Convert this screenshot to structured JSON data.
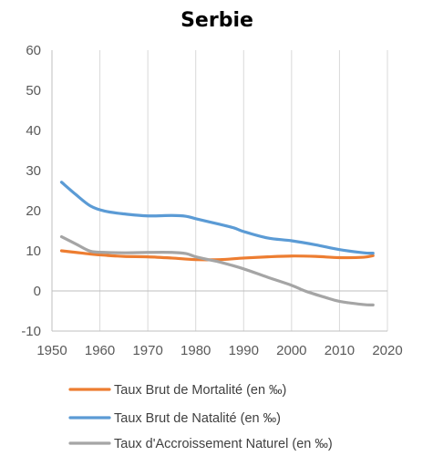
{
  "chart_data": {
    "type": "line",
    "title": "Serbie",
    "xlabel": "",
    "ylabel": "",
    "xlim": [
      1950,
      2020
    ],
    "ylim": [
      -10,
      60
    ],
    "x_ticks": [
      1950,
      1960,
      1970,
      1980,
      1990,
      2000,
      2010,
      2020
    ],
    "y_ticks": [
      60,
      50,
      40,
      30,
      20,
      10,
      0,
      -10
    ],
    "grid": "vertical",
    "legend_position": "bottom",
    "series": [
      {
        "name": "Taux Brut de Mortalité (en ‰)",
        "color": "#ed7d31",
        "x": [
          1952,
          1955,
          1958,
          1961,
          1965,
          1970,
          1975,
          1980,
          1985,
          1990,
          1995,
          2000,
          2005,
          2010,
          2015,
          2017
        ],
        "y": [
          10.0,
          9.6,
          9.2,
          8.9,
          8.6,
          8.5,
          8.2,
          7.8,
          7.8,
          8.2,
          8.5,
          8.7,
          8.6,
          8.3,
          8.4,
          8.8
        ]
      },
      {
        "name": "Taux Brut de Natalité (en ‰)",
        "color": "#5b9bd5",
        "x": [
          1952,
          1955,
          1958,
          1961,
          1965,
          1970,
          1975,
          1978,
          1980,
          1985,
          1988,
          1990,
          1995,
          2000,
          2005,
          2010,
          2015,
          2017
        ],
        "y": [
          27.1,
          24.0,
          21.2,
          19.9,
          19.2,
          18.7,
          18.8,
          18.6,
          18.0,
          16.6,
          15.7,
          14.8,
          13.2,
          12.5,
          11.5,
          10.3,
          9.5,
          9.4
        ]
      },
      {
        "name": "Taux d'Accroissement Naturel (en ‰)",
        "color": "#a5a5a5",
        "x": [
          1952,
          1955,
          1958,
          1961,
          1965,
          1970,
          1975,
          1978,
          1980,
          1983,
          1985,
          1990,
          1995,
          2000,
          2003,
          2007,
          2010,
          2015,
          2017
        ],
        "y": [
          13.5,
          11.7,
          9.9,
          9.6,
          9.5,
          9.6,
          9.6,
          9.3,
          8.5,
          7.7,
          7.2,
          5.5,
          3.4,
          1.4,
          -0.1,
          -1.6,
          -2.6,
          -3.4,
          -3.5
        ]
      }
    ]
  }
}
